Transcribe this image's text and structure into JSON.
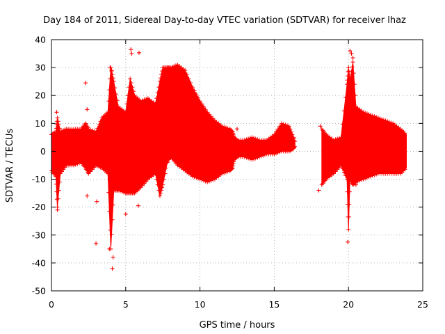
{
  "chart_data": {
    "type": "scatter",
    "title": "Day 184 of 2011, Sidereal Day-to-day VTEC variation (SDTVAR) for receiver lhaz",
    "xlabel": "GPS time / hours",
    "ylabel": "SDTVAR / TECUs",
    "xlim": [
      0,
      25
    ],
    "ylim": [
      -50,
      40
    ],
    "xticks": [
      0,
      5,
      10,
      15,
      20,
      25
    ],
    "yticks": [
      -50,
      -40,
      -30,
      -20,
      -10,
      0,
      10,
      20,
      30,
      40
    ],
    "xtick_labels": [
      "0",
      "5",
      "10",
      "15",
      "20",
      "25"
    ],
    "ytick_labels": [
      "-50",
      "-40",
      "-30",
      "-20",
      "-10",
      "0",
      "10",
      "20",
      "30",
      "40"
    ],
    "grid": true,
    "marker": "+",
    "color": "#ff0000",
    "series": [
      {
        "name": "SDTVAR",
        "envelope": {
          "x": [
            0.0,
            0.3,
            0.4,
            0.6,
            1.0,
            1.5,
            2.0,
            2.3,
            2.5,
            3.0,
            3.4,
            3.8,
            4.0,
            4.2,
            4.5,
            5.0,
            5.3,
            5.6,
            6.0,
            6.5,
            7.0,
            7.3,
            7.5,
            7.8,
            8.0,
            8.5,
            9.0,
            9.5,
            10.0,
            10.5,
            11.0,
            11.5,
            12.0,
            12.2,
            12.3,
            12.5,
            13.0,
            13.5,
            14.0,
            14.5,
            15.0,
            15.5,
            16.0,
            16.3,
            16.4
          ],
          "upper": [
            6,
            7,
            12,
            7,
            8,
            8,
            8,
            10,
            8,
            7,
            12,
            14,
            30,
            25,
            16,
            14,
            26,
            20,
            18,
            19,
            17,
            25,
            30,
            30,
            30,
            31,
            29,
            23,
            18,
            14,
            11,
            9,
            8,
            7,
            5,
            4,
            4,
            5,
            4,
            4,
            6,
            10,
            9,
            5,
            3
          ],
          "lower": [
            -7,
            -9,
            -20,
            -8,
            -5,
            -5,
            -4,
            -6,
            -8,
            -5,
            -6,
            -8,
            -35,
            -14,
            -14,
            -15,
            -15,
            -15,
            -13,
            -10,
            -8,
            -16,
            -12,
            -4,
            -2,
            -5,
            -7,
            -9,
            -10,
            -11,
            -10,
            -8,
            -7,
            -6,
            -3,
            -2,
            -2,
            -3,
            -2,
            -1,
            -1,
            0,
            0,
            1,
            2
          ]
        },
        "envelope2": {
          "x": [
            18.2,
            18.5,
            19.0,
            19.5,
            19.9,
            20.0,
            20.1,
            20.3,
            20.5,
            21.0,
            21.5,
            22.0,
            22.5,
            23.0,
            23.5,
            23.9
          ],
          "upper": [
            8,
            6,
            4,
            5,
            24,
            30,
            25,
            32,
            16,
            14,
            13,
            12,
            11,
            10,
            8,
            6
          ],
          "lower": [
            -12,
            -10,
            -8,
            -5,
            -10,
            -28,
            -10,
            -12,
            -11,
            -10,
            -9,
            -8,
            -8,
            -8,
            -8,
            -6
          ]
        },
        "outliers": [
          {
            "x": 0.35,
            "y": 14
          },
          {
            "x": 0.4,
            "y": -21
          },
          {
            "x": 2.3,
            "y": 24.5
          },
          {
            "x": 2.4,
            "y": 15
          },
          {
            "x": 2.4,
            "y": -16
          },
          {
            "x": 3.0,
            "y": -33
          },
          {
            "x": 3.05,
            "y": -18
          },
          {
            "x": 3.9,
            "y": -35
          },
          {
            "x": 4.1,
            "y": -42
          },
          {
            "x": 4.15,
            "y": -38
          },
          {
            "x": 3.95,
            "y": 30
          },
          {
            "x": 4.05,
            "y": 29
          },
          {
            "x": 5.0,
            "y": -22.5
          },
          {
            "x": 5.35,
            "y": 36.5
          },
          {
            "x": 5.4,
            "y": 35
          },
          {
            "x": 5.9,
            "y": 35.3
          },
          {
            "x": 5.85,
            "y": -19.5
          },
          {
            "x": 12.5,
            "y": 8
          },
          {
            "x": 18.0,
            "y": -14
          },
          {
            "x": 18.1,
            "y": 9
          },
          {
            "x": 19.95,
            "y": -32.5
          },
          {
            "x": 20.1,
            "y": 36
          },
          {
            "x": 20.2,
            "y": 35
          },
          {
            "x": 20.3,
            "y": 33.5
          },
          {
            "x": 20.5,
            "y": -12
          }
        ]
      }
    ]
  }
}
